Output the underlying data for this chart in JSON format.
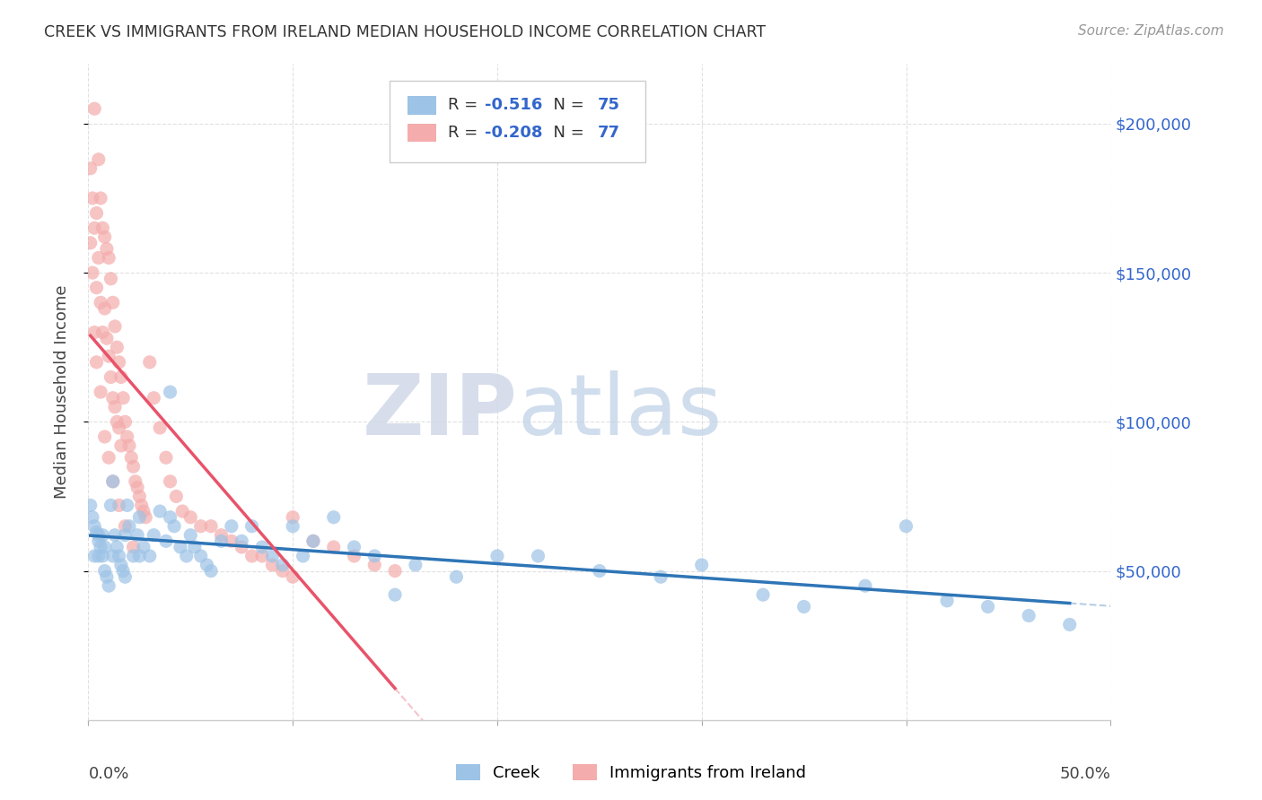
{
  "title": "CREEK VS IMMIGRANTS FROM IRELAND MEDIAN HOUSEHOLD INCOME CORRELATION CHART",
  "source": "Source: ZipAtlas.com",
  "ylabel": "Median Household Income",
  "watermark_zip": "ZIP",
  "watermark_atlas": "atlas",
  "creek_R": -0.516,
  "creek_N": 75,
  "ireland_R": -0.208,
  "ireland_N": 77,
  "yticks": [
    50000,
    100000,
    150000,
    200000
  ],
  "ytick_labels": [
    "$50,000",
    "$100,000",
    "$150,000",
    "$200,000"
  ],
  "ylim": [
    0,
    220000
  ],
  "xlim": [
    0.0,
    0.5
  ],
  "xticks": [
    0.0,
    0.1,
    0.2,
    0.3,
    0.4,
    0.5
  ],
  "xtick_labels": [
    "0.0%",
    "",
    "",
    "",
    "",
    "50.0%"
  ],
  "creek_color": "#9DC3E6",
  "ireland_color": "#F4ACAC",
  "creek_line_color": "#2E75B6",
  "ireland_line_color": "#E8536A",
  "creek_scatter_x": [
    0.001,
    0.002,
    0.003,
    0.004,
    0.005,
    0.005,
    0.006,
    0.007,
    0.007,
    0.008,
    0.009,
    0.01,
    0.011,
    0.012,
    0.013,
    0.014,
    0.015,
    0.016,
    0.017,
    0.018,
    0.019,
    0.02,
    0.022,
    0.024,
    0.025,
    0.027,
    0.03,
    0.032,
    0.035,
    0.038,
    0.04,
    0.042,
    0.045,
    0.048,
    0.05,
    0.052,
    0.055,
    0.058,
    0.06,
    0.065,
    0.07,
    0.075,
    0.08,
    0.085,
    0.09,
    0.095,
    0.1,
    0.105,
    0.11,
    0.12,
    0.13,
    0.14,
    0.15,
    0.16,
    0.18,
    0.2,
    0.22,
    0.25,
    0.28,
    0.3,
    0.33,
    0.35,
    0.38,
    0.4,
    0.42,
    0.44,
    0.46,
    0.48,
    0.003,
    0.005,
    0.008,
    0.012,
    0.018,
    0.025,
    0.04
  ],
  "creek_scatter_y": [
    72000,
    68000,
    65000,
    63000,
    60000,
    55000,
    58000,
    62000,
    55000,
    50000,
    48000,
    45000,
    72000,
    80000,
    62000,
    58000,
    55000,
    52000,
    50000,
    48000,
    72000,
    65000,
    55000,
    62000,
    68000,
    58000,
    55000,
    62000,
    70000,
    60000,
    68000,
    65000,
    58000,
    55000,
    62000,
    58000,
    55000,
    52000,
    50000,
    60000,
    65000,
    60000,
    65000,
    58000,
    55000,
    52000,
    65000,
    55000,
    60000,
    68000,
    58000,
    55000,
    42000,
    52000,
    48000,
    55000,
    55000,
    50000,
    48000,
    52000,
    42000,
    38000,
    45000,
    65000,
    40000,
    38000,
    35000,
    32000,
    55000,
    62000,
    58000,
    55000,
    62000,
    55000,
    110000
  ],
  "ireland_scatter_x": [
    0.001,
    0.001,
    0.002,
    0.002,
    0.003,
    0.003,
    0.004,
    0.004,
    0.005,
    0.005,
    0.006,
    0.006,
    0.007,
    0.007,
    0.008,
    0.008,
    0.009,
    0.009,
    0.01,
    0.01,
    0.011,
    0.011,
    0.012,
    0.012,
    0.013,
    0.013,
    0.014,
    0.014,
    0.015,
    0.015,
    0.016,
    0.016,
    0.017,
    0.018,
    0.019,
    0.02,
    0.021,
    0.022,
    0.023,
    0.024,
    0.025,
    0.026,
    0.027,
    0.028,
    0.03,
    0.032,
    0.035,
    0.038,
    0.04,
    0.043,
    0.046,
    0.05,
    0.055,
    0.06,
    0.065,
    0.07,
    0.075,
    0.08,
    0.085,
    0.09,
    0.095,
    0.1,
    0.11,
    0.12,
    0.13,
    0.14,
    0.15,
    0.003,
    0.004,
    0.006,
    0.008,
    0.01,
    0.012,
    0.015,
    0.018,
    0.022,
    0.1
  ],
  "ireland_scatter_y": [
    185000,
    160000,
    175000,
    150000,
    205000,
    165000,
    170000,
    145000,
    188000,
    155000,
    175000,
    140000,
    165000,
    130000,
    162000,
    138000,
    158000,
    128000,
    155000,
    122000,
    148000,
    115000,
    140000,
    108000,
    132000,
    105000,
    125000,
    100000,
    120000,
    98000,
    115000,
    92000,
    108000,
    100000,
    95000,
    92000,
    88000,
    85000,
    80000,
    78000,
    75000,
    72000,
    70000,
    68000,
    120000,
    108000,
    98000,
    88000,
    80000,
    75000,
    70000,
    68000,
    65000,
    65000,
    62000,
    60000,
    58000,
    55000,
    55000,
    52000,
    50000,
    48000,
    60000,
    58000,
    55000,
    52000,
    50000,
    130000,
    120000,
    110000,
    95000,
    88000,
    80000,
    72000,
    65000,
    58000,
    68000
  ],
  "background_color": "#FFFFFF",
  "grid_color": "#DDDDDD"
}
